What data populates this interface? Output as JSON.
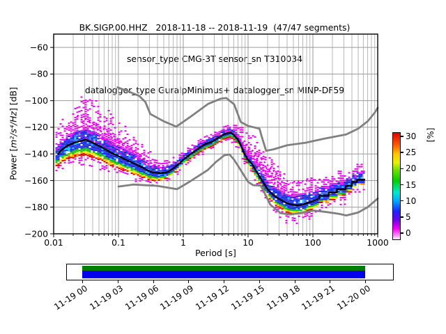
{
  "title": {
    "line1": "BK.SIGP.00.HHZ   2018-11-18 -- 2018-11-19  (47/47 segments)",
    "line2": "sensor_type CMG-3T sensor_sn T310034",
    "line3": "datalogger_type GuralpMinimus+ datalogger_sn MINP-DF59"
  },
  "axes": {
    "ylabel_prefix": "Power [",
    "ylabel_math": "m²/s⁴/Hz",
    "ylabel_suffix": "] [dB]",
    "xlabel": "Period [s]",
    "xticks": [
      {
        "v": 0.01,
        "label": "0.01"
      },
      {
        "v": 0.1,
        "label": "0.1"
      },
      {
        "v": 1,
        "label": "1"
      },
      {
        "v": 10,
        "label": "10"
      },
      {
        "v": 100,
        "label": "100"
      },
      {
        "v": 1000,
        "label": "1000"
      }
    ],
    "yticks": [
      {
        "v": -60,
        "label": "−60"
      },
      {
        "v": -80,
        "label": "−80"
      },
      {
        "v": -100,
        "label": "−100"
      },
      {
        "v": -120,
        "label": "−120"
      },
      {
        "v": -140,
        "label": "−140"
      },
      {
        "v": -160,
        "label": "−160"
      },
      {
        "v": -180,
        "label": "−180"
      },
      {
        "v": -200,
        "label": "−200"
      }
    ]
  },
  "colorbar": {
    "label": "[%]",
    "ticks": [
      {
        "v": 0,
        "label": "0"
      },
      {
        "v": 5,
        "label": "5"
      },
      {
        "v": 10,
        "label": "10"
      },
      {
        "v": 15,
        "label": "15"
      },
      {
        "v": 20,
        "label": "20"
      },
      {
        "v": 25,
        "label": "25"
      },
      {
        "v": 30,
        "label": "30"
      }
    ],
    "gradient": [
      "#ffffff 0%",
      "#ff9dff 3%",
      "#f000f0 10%",
      "#7000e8 18%",
      "#2020ff 26%",
      "#00a8ff 36%",
      "#00e8d0 44%",
      "#00d000 55%",
      "#70e000 65%",
      "#e8f000 72%",
      "#ffc800 80%",
      "#ff6000 88%",
      "#e00000 100%"
    ]
  },
  "chart_data": {
    "type": "heatmap",
    "title": "BK.SIGP.00.HHZ 2018-11-18 -- 2018-11-19 (47/47 segments)",
    "subtitle": "sensor_type CMG-3T sensor_sn T310034 | datalogger_type GuralpMinimus+ datalogger_sn MINP-DF59",
    "xlabel": "Period [s]",
    "ylabel": "Power [m2/s4/Hz] [dB]",
    "x_scale": "log",
    "xlim": [
      0.01,
      1000
    ],
    "ylim": [
      -200,
      -50
    ],
    "grid": true,
    "legend": "none",
    "colorbar_label": "[%]",
    "colorbar_range": [
      0,
      30
    ],
    "series": [
      {
        "name": "noise-model-high",
        "color": "#808080",
        "points": [
          [
            0.097,
            -90
          ],
          [
            0.15,
            -93.5
          ],
          [
            0.21,
            -96.5
          ],
          [
            0.26,
            -101
          ],
          [
            0.31,
            -110
          ],
          [
            0.5,
            -115.5
          ],
          [
            0.78,
            -119.5
          ],
          [
            1.3,
            -112
          ],
          [
            2.4,
            -102.5
          ],
          [
            3.8,
            -98.5
          ],
          [
            4.6,
            -98
          ],
          [
            6.1,
            -102.8
          ],
          [
            7.7,
            -116
          ],
          [
            10,
            -119
          ],
          [
            15,
            -121
          ],
          [
            16,
            -126
          ],
          [
            19,
            -137.7
          ],
          [
            25,
            -136.5
          ],
          [
            40,
            -133.5
          ],
          [
            77,
            -131.6
          ],
          [
            150,
            -128.5
          ],
          [
            325,
            -125.4
          ],
          [
            500,
            -121
          ],
          [
            700,
            -115.5
          ],
          [
            900,
            -109
          ],
          [
            1000,
            -105.4
          ]
        ]
      },
      {
        "name": "noise-model-low",
        "color": "#808080",
        "points": [
          [
            0.1,
            -164.5
          ],
          [
            0.17,
            -163
          ],
          [
            0.4,
            -164
          ],
          [
            0.8,
            -166.5
          ],
          [
            1.24,
            -161
          ],
          [
            2.4,
            -152
          ],
          [
            3.2,
            -146
          ],
          [
            4.3,
            -141
          ],
          [
            5.2,
            -140.5
          ],
          [
            6,
            -144
          ],
          [
            7,
            -149
          ],
          [
            10,
            -161
          ],
          [
            12,
            -163.5
          ],
          [
            15.6,
            -163.8
          ],
          [
            17,
            -167
          ],
          [
            21.9,
            -178
          ],
          [
            31.6,
            -184.5
          ],
          [
            45,
            -185.5
          ],
          [
            70,
            -184
          ],
          [
            101,
            -182.5
          ],
          [
            154,
            -183.5
          ],
          [
            250,
            -185
          ],
          [
            328,
            -186.2
          ],
          [
            500,
            -184
          ],
          [
            700,
            -180
          ],
          [
            1000,
            -173.5
          ]
        ]
      },
      {
        "name": "psd-mode-line",
        "color": "#000000",
        "points": [
          [
            0.0115,
            -140.5
          ],
          [
            0.013,
            -137.5
          ],
          [
            0.016,
            -134
          ],
          [
            0.021,
            -131.5
          ],
          [
            0.031,
            -129.3
          ],
          [
            0.04,
            -131.5
          ],
          [
            0.055,
            -135
          ],
          [
            0.08,
            -139.5
          ],
          [
            0.12,
            -143.5
          ],
          [
            0.18,
            -147.5
          ],
          [
            0.25,
            -151
          ],
          [
            0.33,
            -153.8
          ],
          [
            0.45,
            -154.6
          ],
          [
            0.58,
            -153.5
          ],
          [
            0.72,
            -150.5
          ],
          [
            0.88,
            -147
          ],
          [
            1.05,
            -143.5
          ],
          [
            1.35,
            -139.5
          ],
          [
            1.75,
            -135.5
          ],
          [
            2.2,
            -132.5
          ],
          [
            2.8,
            -130.8
          ],
          [
            3.4,
            -128
          ],
          [
            4.2,
            -125.3
          ],
          [
            5.3,
            -123.8
          ],
          [
            6.1,
            -126
          ],
          [
            7,
            -129.5
          ],
          [
            7.8,
            -134
          ],
          [
            8.7,
            -139.5
          ],
          [
            10,
            -144.5
          ],
          [
            11.5,
            -147.5
          ],
          [
            13,
            -152
          ],
          [
            15,
            -157
          ],
          [
            17.5,
            -162
          ],
          [
            20,
            -166.5
          ],
          [
            24,
            -170.5
          ],
          [
            29,
            -173.5
          ],
          [
            36,
            -176
          ],
          [
            45,
            -177.8
          ],
          [
            58,
            -178.8
          ],
          [
            70,
            -178
          ],
          [
            85,
            -176.5
          ],
          [
            100,
            -175.5
          ],
          [
            125,
            -173.5
          ],
          [
            125,
            -171.5
          ],
          [
            175,
            -171.5
          ],
          [
            175,
            -169
          ],
          [
            235,
            -169
          ],
          [
            235,
            -166.5
          ],
          [
            320,
            -166.5
          ],
          [
            320,
            -164
          ],
          [
            400,
            -164
          ],
          [
            400,
            -161
          ],
          [
            480,
            -161
          ],
          [
            480,
            -159.3
          ],
          [
            640,
            -159.3
          ]
        ]
      }
    ],
    "distribution": {
      "band": [
        [
          0.011,
          5,
          9
        ],
        [
          0.02,
          7,
          11
        ],
        [
          0.031,
          8,
          12
        ],
        [
          0.08,
          7,
          10
        ],
        [
          0.2,
          6,
          8
        ],
        [
          0.4,
          4.5,
          6
        ],
        [
          0.8,
          3,
          4
        ],
        [
          2,
          2.5,
          3.5
        ],
        [
          5.3,
          2.5,
          3.5
        ],
        [
          8,
          3,
          4
        ],
        [
          12,
          4,
          5
        ],
        [
          20,
          5,
          6
        ],
        [
          35,
          6,
          7
        ],
        [
          60,
          7,
          7
        ],
        [
          100,
          6,
          6
        ],
        [
          200,
          5.5,
          5.5
        ],
        [
          420,
          5,
          4.5
        ],
        [
          660,
          5,
          4.5
        ]
      ],
      "magenta_spread": [
        [
          0.011,
          14,
          5
        ],
        [
          0.02,
          22,
          7
        ],
        [
          0.031,
          27,
          8
        ],
        [
          0.08,
          23,
          6
        ],
        [
          0.2,
          15,
          5
        ],
        [
          0.45,
          8,
          4
        ],
        [
          0.8,
          5,
          3
        ],
        [
          2,
          4,
          3
        ],
        [
          5.3,
          5,
          3
        ],
        [
          8,
          13,
          4
        ],
        [
          12,
          21,
          5
        ],
        [
          20,
          24,
          6
        ],
        [
          35,
          17,
          8
        ],
        [
          60,
          13,
          10
        ],
        [
          100,
          12,
          9
        ],
        [
          200,
          10,
          8
        ],
        [
          420,
          8,
          7
        ],
        [
          660,
          7,
          6
        ]
      ],
      "streaks": [
        [
          [
            0.023,
            -111
          ],
          [
            0.05,
            -119
          ],
          [
            0.13,
            -133
          ],
          [
            0.3,
            -146
          ],
          [
            0.5,
            -152
          ]
        ],
        [
          [
            0.027,
            -116
          ],
          [
            0.07,
            -126
          ],
          [
            0.2,
            -141
          ],
          [
            0.42,
            -151
          ]
        ],
        [
          [
            0.033,
            -122
          ],
          [
            0.1,
            -134
          ],
          [
            0.3,
            -150
          ]
        ],
        [
          [
            0.02,
            -124
          ],
          [
            0.05,
            -132
          ],
          [
            0.12,
            -141
          ]
        ],
        [
          [
            5.8,
            -125
          ],
          [
            12,
            -138
          ],
          [
            25,
            -153
          ],
          [
            45,
            -162
          ]
        ],
        [
          [
            6.5,
            -128
          ],
          [
            15,
            -146
          ],
          [
            35,
            -162
          ]
        ],
        [
          [
            8,
            -134
          ],
          [
            20,
            -155
          ],
          [
            40,
            -167
          ]
        ],
        [
          [
            10,
            -141
          ],
          [
            30,
            -165
          ],
          [
            55,
            -172
          ]
        ],
        [
          [
            50,
            -161
          ],
          [
            140,
            -159
          ]
        ]
      ],
      "palette": {
        "magenta": "#ee00ee",
        "blue": "#1020e0",
        "blue2": "#3050ff",
        "cyan": "#00c8f0",
        "green": "#00c000",
        "yellow": "#f0e800",
        "orange": "#ff8800",
        "red": "#e00000",
        "black": "#000000",
        "gray": "#808080"
      }
    }
  },
  "timeline": {
    "labels": [
      "11-19 00",
      "11-19 03",
      "11-19 06",
      "11-19 09",
      "11-19 12",
      "11-19 15",
      "11-19 18",
      "11-19 21",
      "11-20 00"
    ],
    "coverage_green": "#007d00",
    "coverage_blue": "#0000ee"
  }
}
